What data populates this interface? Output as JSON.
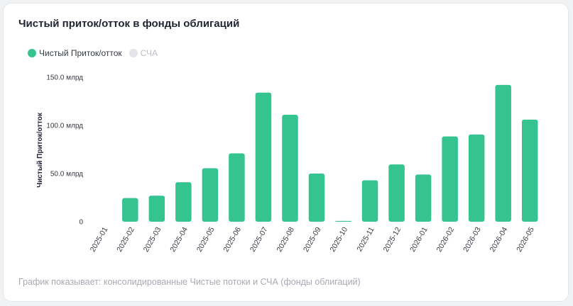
{
  "card": {
    "title": "Чистый приток/отток в фонды облигаций",
    "caption": "График показывает: консолидированные Чистые потоки и СЧА (фонды облигаций)"
  },
  "legend": [
    {
      "label": "Чистый Приток/отток",
      "color": "#35c48f",
      "active": true
    },
    {
      "label": "СЧА",
      "color": "#e3e4e7",
      "active": false
    }
  ],
  "chart_data": {
    "type": "bar",
    "title": "Чистый приток/отток в фонды облигаций",
    "ylabel": "Чистый Приток/отток",
    "ylim": [
      0,
      150
    ],
    "yticks": [
      {
        "value": 0,
        "label": "0"
      },
      {
        "value": 50,
        "label": "50.0 млрд"
      },
      {
        "value": 100,
        "label": "100.0 млрд"
      },
      {
        "value": 150,
        "label": "150.0 млрд"
      }
    ],
    "categories": [
      "2025-01",
      "2025-02",
      "2025-03",
      "2025-04",
      "2025-05",
      "2025-06",
      "2025-07",
      "2025-08",
      "2025-09",
      "2025-10",
      "2025-11",
      "2025-12",
      "2026-01",
      "2026-02",
      "2026-03",
      "2026-04",
      "2026-05"
    ],
    "series": [
      {
        "name": "Чистый Приток/отток",
        "color": "#35c48f",
        "values": [
          0,
          24.5,
          27,
          41,
          55.5,
          71,
          134,
          111,
          50,
          0.8,
          43,
          59.5,
          49,
          88.5,
          90.5,
          142,
          106
        ]
      }
    ],
    "grid": false,
    "legend_position": "top-left"
  }
}
